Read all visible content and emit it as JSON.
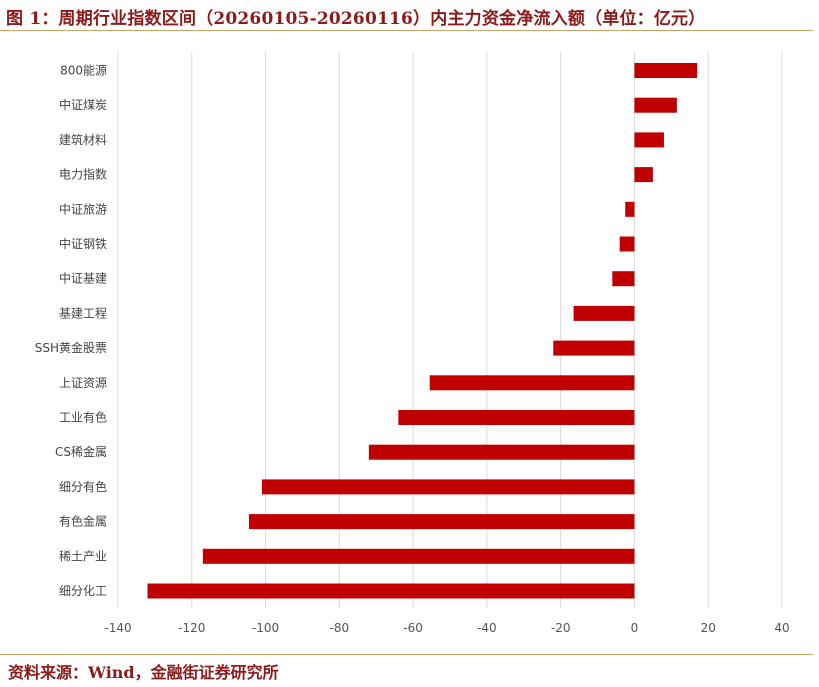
{
  "header": {
    "title": "图 1：周期行业指数区间（20260105-20260116）内主力资金净流入额（单位：亿元）"
  },
  "footer": {
    "source": "资料来源：Wind，金融街证券研究所"
  },
  "colors": {
    "bar": "#c00000",
    "grid": "#d9d9d9",
    "accent": "#8b1a1a"
  },
  "chart_data": {
    "type": "bar",
    "orientation": "horizontal",
    "title": "周期行业指数区间（20260105-20260116）内主力资金净流入额（单位：亿元）",
    "categories": [
      "800能源",
      "中证煤炭",
      "建筑材料",
      "电力指数",
      "中证旅游",
      "中证钢铁",
      "中证基建",
      "基建工程",
      "SSH黄金股票",
      "上证资源",
      "工业有色",
      "CS稀金属",
      "细分有色",
      "有色金属",
      "稀土产业",
      "细分化工"
    ],
    "values": [
      17,
      11.5,
      8,
      5,
      -2.5,
      -4,
      -6,
      -16.5,
      -22,
      -55.5,
      -64,
      -72,
      -101,
      -104.5,
      -117,
      -132
    ],
    "xlim": [
      -140,
      40
    ],
    "xticks": [
      -140,
      -120,
      -100,
      -80,
      -60,
      -40,
      -20,
      0,
      20,
      40
    ],
    "xlabel": "",
    "ylabel": "",
    "grid": true
  }
}
